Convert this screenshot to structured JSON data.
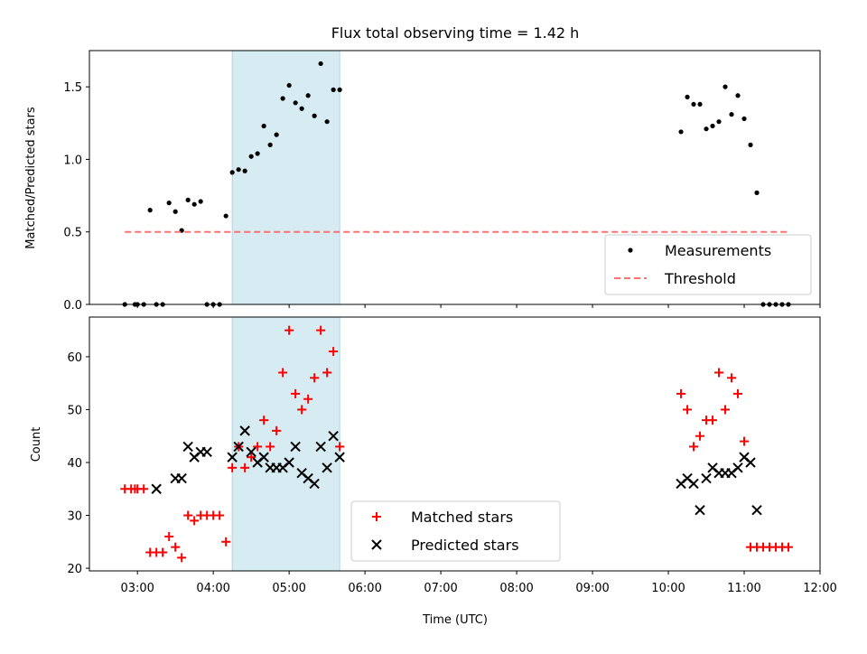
{
  "chart_data": [
    {
      "type": "scatter",
      "title": "Flux total observing time = 1.42 h",
      "xlabel": "",
      "ylabel": "Matched/Predicted stars",
      "ylim": [
        0,
        1.75
      ],
      "yticks": [
        "0.0",
        "0.5",
        "1.0",
        "1.5"
      ],
      "shaded_span": [
        "04:15",
        "05:40"
      ],
      "legend_position": "lower-right",
      "series": [
        {
          "name": "Measurements",
          "marker": "dot",
          "color": "#000000",
          "x": [
            "02:50",
            "02:58",
            "03:00",
            "03:05",
            "03:10",
            "03:15",
            "03:20",
            "03:25",
            "03:30",
            "03:35",
            "03:40",
            "03:45",
            "03:50",
            "03:55",
            "04:00",
            "04:05",
            "04:10",
            "04:15",
            "04:20",
            "04:25",
            "04:30",
            "04:35",
            "04:40",
            "04:45",
            "04:50",
            "04:55",
            "05:00",
            "05:05",
            "05:10",
            "05:15",
            "05:20",
            "05:25",
            "05:30",
            "05:35",
            "05:40",
            "10:10",
            "10:15",
            "10:20",
            "10:25",
            "10:30",
            "10:35",
            "10:40",
            "10:45",
            "10:50",
            "10:55",
            "11:00",
            "11:05",
            "11:10",
            "11:15",
            "11:20",
            "11:25",
            "11:30",
            "11:35"
          ],
          "y": [
            0,
            0,
            0,
            0,
            0.65,
            0,
            0,
            0.7,
            0.64,
            0.51,
            0.72,
            0.69,
            0.71,
            0,
            0,
            0,
            0.61,
            0.91,
            0.93,
            0.92,
            1.02,
            1.04,
            1.23,
            1.1,
            1.17,
            1.42,
            1.51,
            1.39,
            1.35,
            1.44,
            1.3,
            1.66,
            1.26,
            1.48,
            1.48,
            1.19,
            1.43,
            1.38,
            1.38,
            1.21,
            1.23,
            1.26,
            1.5,
            1.31,
            1.44,
            1.28,
            1.1,
            0.77,
            0,
            0,
            0,
            0,
            0
          ]
        },
        {
          "name": "Threshold",
          "style": "dashed",
          "color": "#ff7070",
          "x": [
            "02:50",
            "11:35"
          ],
          "y": [
            0.5,
            0.5
          ]
        }
      ]
    },
    {
      "type": "scatter",
      "title": "",
      "xlabel": "Time (UTC)",
      "ylabel": "Count",
      "ylim": [
        19.5,
        67.5
      ],
      "yticks": [
        "20",
        "30",
        "40",
        "50",
        "60"
      ],
      "xticks": [
        "03:00",
        "04:00",
        "05:00",
        "06:00",
        "07:00",
        "08:00",
        "09:00",
        "10:00",
        "11:00",
        "12:00"
      ],
      "xlim": [
        "02:22",
        "12:00"
      ],
      "shaded_span": [
        "04:15",
        "05:40"
      ],
      "legend_position": "lower-center",
      "series": [
        {
          "name": "Matched stars",
          "marker": "plus",
          "color": "#ff0000",
          "x": [
            "02:50",
            "02:55",
            "02:58",
            "03:00",
            "03:05",
            "03:10",
            "03:15",
            "03:20",
            "03:25",
            "03:30",
            "03:35",
            "03:40",
            "03:45",
            "03:50",
            "03:55",
            "04:00",
            "04:05",
            "04:10",
            "04:15",
            "04:20",
            "04:25",
            "04:30",
            "04:35",
            "04:40",
            "04:45",
            "04:50",
            "04:55",
            "05:00",
            "05:05",
            "05:10",
            "05:15",
            "05:20",
            "05:25",
            "05:30",
            "05:35",
            "05:40",
            "10:10",
            "10:15",
            "10:20",
            "10:25",
            "10:30",
            "10:35",
            "10:40",
            "10:45",
            "10:50",
            "10:55",
            "11:00",
            "11:05",
            "11:10",
            "11:15",
            "11:20",
            "11:25",
            "11:30",
            "11:35"
          ],
          "y": [
            35,
            35,
            35,
            35,
            35,
            23,
            23,
            23,
            26,
            24,
            22,
            30,
            29,
            30,
            30,
            30,
            30,
            25,
            39,
            43,
            39,
            41,
            43,
            48,
            43,
            46,
            57,
            65,
            53,
            50,
            52,
            56,
            65,
            57,
            61,
            43,
            53,
            50,
            43,
            45,
            48,
            48,
            57,
            50,
            56,
            53,
            44,
            24,
            24,
            24,
            24,
            24,
            24,
            24
          ]
        },
        {
          "name": "Predicted stars",
          "marker": "x",
          "color": "#000000",
          "x": [
            "03:15",
            "03:30",
            "03:35",
            "03:40",
            "03:45",
            "03:50",
            "03:55",
            "04:15",
            "04:20",
            "04:25",
            "04:30",
            "04:35",
            "04:40",
            "04:45",
            "04:50",
            "04:55",
            "05:00",
            "05:05",
            "05:10",
            "05:15",
            "05:20",
            "05:25",
            "05:30",
            "05:35",
            "05:40",
            "10:10",
            "10:15",
            "10:20",
            "10:25",
            "10:30",
            "10:35",
            "10:40",
            "10:45",
            "10:50",
            "10:55",
            "11:00",
            "11:05",
            "11:10"
          ],
          "y": [
            35,
            37,
            37,
            43,
            41,
            42,
            42,
            41,
            43,
            46,
            42,
            40,
            41,
            39,
            39,
            39,
            40,
            43,
            38,
            37,
            36,
            43,
            39,
            45,
            41,
            36,
            37,
            36,
            31,
            37,
            39,
            38,
            38,
            38,
            39,
            41,
            40,
            31
          ]
        }
      ]
    }
  ]
}
